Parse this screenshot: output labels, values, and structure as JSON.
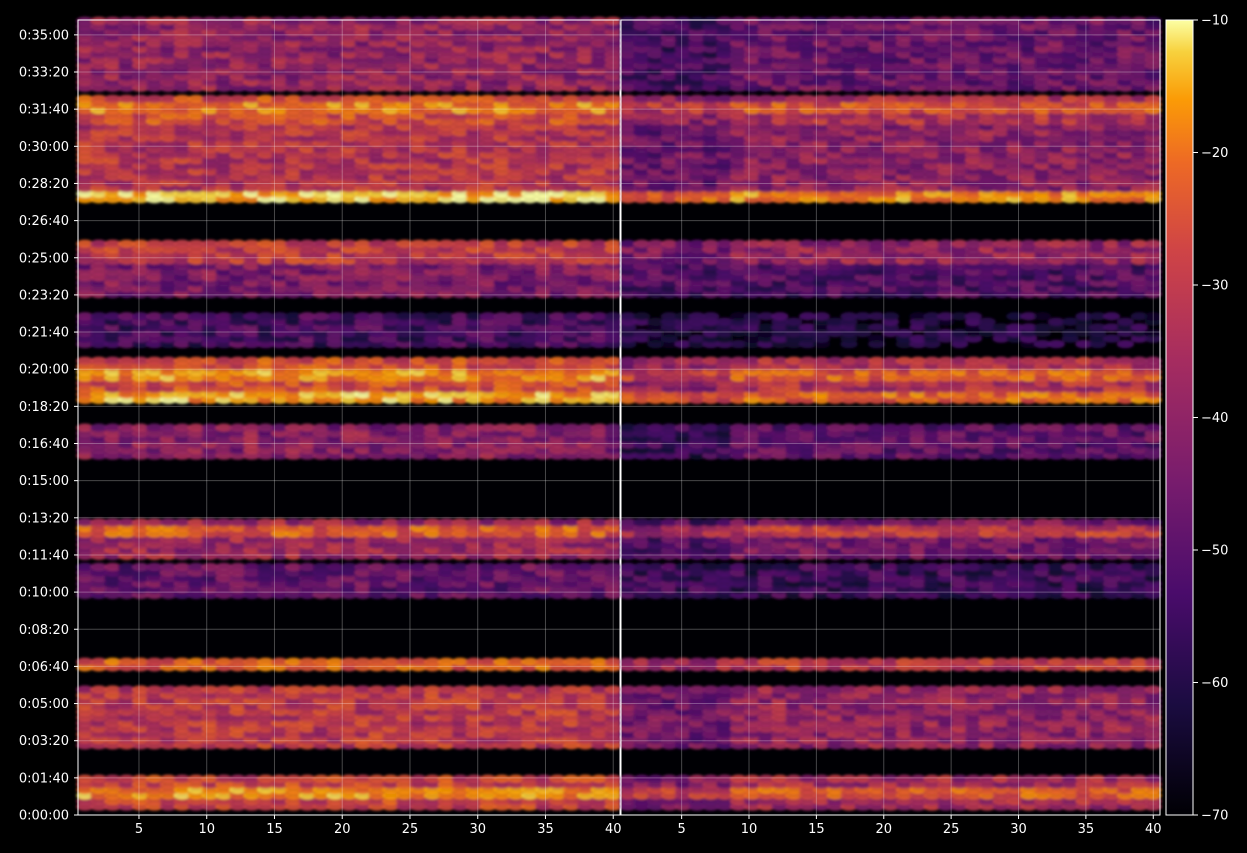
{
  "chart_data": {
    "type": "heatmap",
    "title": "",
    "xlabel": "",
    "ylabel": "",
    "panels": [
      {
        "name": "",
        "xlim": [
          1,
          40
        ],
        "x_ticks": [
          5,
          10,
          15,
          20,
          25,
          30,
          35,
          40
        ]
      },
      {
        "name": "",
        "xlim": [
          1,
          40
        ],
        "x_ticks": [
          5,
          10,
          15,
          20,
          25,
          30,
          35,
          40
        ]
      }
    ],
    "y_ticks": [
      "0:00:00",
      "0:01:40",
      "0:03:20",
      "0:05:00",
      "0:06:40",
      "0:08:20",
      "0:10:00",
      "0:11:40",
      "0:13:20",
      "0:15:00",
      "0:16:40",
      "0:18:20",
      "0:20:00",
      "0:21:40",
      "0:23:20",
      "0:25:00",
      "0:26:40",
      "0:28:20",
      "0:30:00",
      "0:31:40",
      "0:33:20",
      "0:35:00"
    ],
    "y_tick_seconds": [
      0,
      100,
      200,
      300,
      400,
      500,
      600,
      700,
      800,
      900,
      1000,
      1100,
      1200,
      1300,
      1400,
      1500,
      1600,
      1700,
      1800,
      1900,
      2000,
      2100
    ],
    "ylim_seconds": [
      0,
      2140
    ],
    "grid": true,
    "colorbar": {
      "range": [
        -70,
        -10
      ],
      "ticks": [
        -70,
        -60,
        -50,
        -40,
        -30,
        -20,
        -10
      ],
      "tick_labels": [
        "−70",
        "−60",
        "−50",
        "−40",
        "−30",
        "−20",
        "−10"
      ],
      "colormap": "inferno",
      "position": "right"
    },
    "bands_seconds_dB": [
      {
        "start": 10,
        "end": 90,
        "level": -32
      },
      {
        "start": 180,
        "end": 330,
        "level": -35
      },
      {
        "start": 390,
        "end": 415,
        "level": -34
      },
      {
        "start": 580,
        "end": 660,
        "level": -50
      },
      {
        "start": 680,
        "end": 780,
        "level": -40
      },
      {
        "start": 950,
        "end": 1040,
        "level": -44
      },
      {
        "start": 1100,
        "end": 1220,
        "level": -30
      },
      {
        "start": 1260,
        "end": 1340,
        "level": -55
      },
      {
        "start": 1390,
        "end": 1470,
        "level": -46
      },
      {
        "start": 1480,
        "end": 1540,
        "level": -34
      },
      {
        "start": 1640,
        "end": 1850,
        "level": -36
      },
      {
        "start": 1860,
        "end": 1920,
        "level": -30
      },
      {
        "start": 1940,
        "end": 2140,
        "level": -42
      }
    ],
    "peak_lines_seconds_dB": [
      {
        "t": 50,
        "level": -20
      },
      {
        "t": 400,
        "level": -27
      },
      {
        "t": 760,
        "level": -27
      },
      {
        "t": 1120,
        "level": -18
      },
      {
        "t": 1180,
        "level": -20
      },
      {
        "t": 1660,
        "level": -14
      },
      {
        "t": 1900,
        "level": -22
      }
    ]
  }
}
